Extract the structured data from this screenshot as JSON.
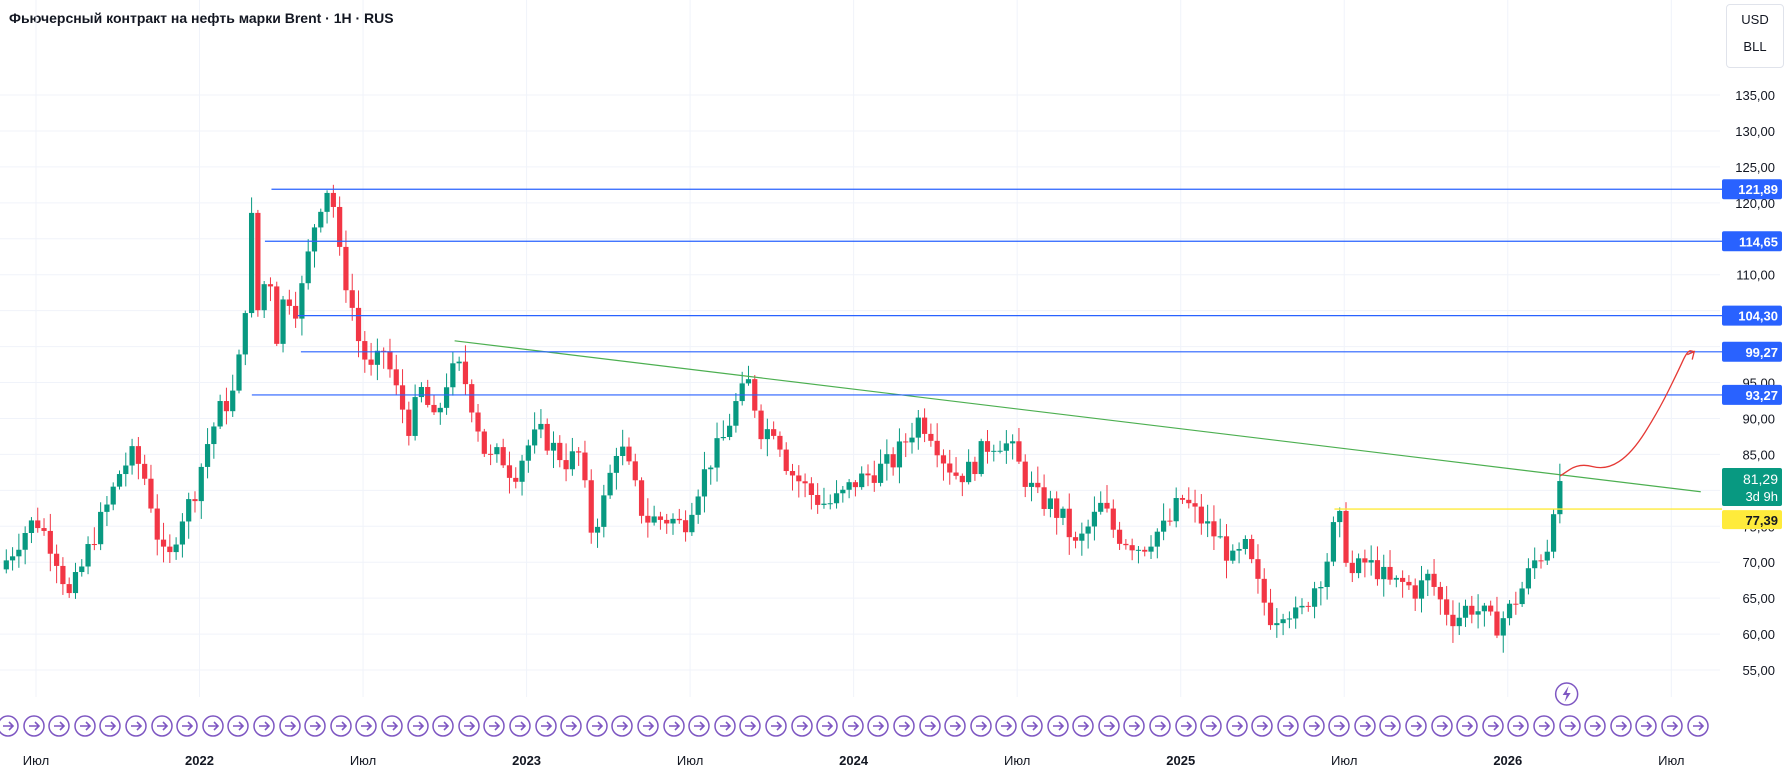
{
  "header": {
    "title": "Фьючерсный контракт на нефть марки Brent · 1H · RUS",
    "currency": "USD",
    "unit": "BLL"
  },
  "colors": {
    "up": "#089981",
    "down": "#f23645",
    "level_line": "#2962ff",
    "level_label_bg": "#2962ff",
    "trendline": "#4caf50",
    "current_label_bg": "#089981",
    "support_line": "#ffeb3b",
    "support_label_bg": "#ffeb3b",
    "projection": "#e53935",
    "event_icon": "#7e57c2"
  },
  "chart_data": {
    "type": "candlestick",
    "ylim": [
      53,
      141
    ],
    "y_ticks": [
      "55,00",
      "60,00",
      "65,00",
      "70,00",
      "75,00",
      "80,00",
      "85,00",
      "90,00",
      "95,00",
      "100,00",
      "105,00",
      "110,00",
      "115,00",
      "120,00",
      "125,00",
      "130,00",
      "135,00"
    ],
    "x_ticks": [
      {
        "label": "Июл",
        "t": 2021.5
      },
      {
        "label": "2022",
        "t": 2022.0
      },
      {
        "label": "Июл",
        "t": 2022.5
      },
      {
        "label": "2023",
        "t": 2023.0
      },
      {
        "label": "Июл",
        "t": 2023.5
      },
      {
        "label": "2024",
        "t": 2024.0
      },
      {
        "label": "Июл",
        "t": 2024.5
      },
      {
        "label": "2025",
        "t": 2025.0
      },
      {
        "label": "Июл",
        "t": 2025.5
      },
      {
        "label": "2026",
        "t": 2026.0
      },
      {
        "label": "Июл",
        "t": 2026.5
      }
    ],
    "xlim": [
      2021.39,
      2026.71
    ],
    "close_path": [
      [
        2021.39,
        69
      ],
      [
        2021.42,
        71
      ],
      [
        2021.46,
        74
      ],
      [
        2021.5,
        76
      ],
      [
        2021.54,
        73
      ],
      [
        2021.57,
        70
      ],
      [
        2021.6,
        65
      ],
      [
        2021.63,
        68
      ],
      [
        2021.67,
        73
      ],
      [
        2021.72,
        78
      ],
      [
        2021.76,
        83
      ],
      [
        2021.8,
        85
      ],
      [
        2021.84,
        81
      ],
      [
        2021.87,
        74
      ],
      [
        2021.9,
        69
      ],
      [
        2021.94,
        76
      ],
      [
        2021.98,
        79
      ],
      [
        2022.02,
        86
      ],
      [
        2022.06,
        91
      ],
      [
        2022.1,
        93
      ],
      [
        2022.13,
        100
      ],
      [
        2022.16,
        118
      ],
      [
        2022.18,
        104
      ],
      [
        2022.21,
        112
      ],
      [
        2022.24,
        100
      ],
      [
        2022.26,
        108
      ],
      [
        2022.3,
        105
      ],
      [
        2022.33,
        112
      ],
      [
        2022.36,
        119
      ],
      [
        2022.4,
        123
      ],
      [
        2022.43,
        112
      ],
      [
        2022.46,
        107
      ],
      [
        2022.49,
        100
      ],
      [
        2022.53,
        96
      ],
      [
        2022.56,
        100
      ],
      [
        2022.6,
        94
      ],
      [
        2022.64,
        89
      ],
      [
        2022.68,
        94
      ],
      [
        2022.72,
        89
      ],
      [
        2022.76,
        96
      ],
      [
        2022.8,
        97
      ],
      [
        2022.84,
        91
      ],
      [
        2022.88,
        84
      ],
      [
        2022.92,
        85
      ],
      [
        2022.96,
        82
      ],
      [
        2023.0,
        86
      ],
      [
        2023.04,
        88
      ],
      [
        2023.08,
        86
      ],
      [
        2023.12,
        84
      ],
      [
        2023.16,
        85
      ],
      [
        2023.2,
        74
      ],
      [
        2023.24,
        79
      ],
      [
        2023.28,
        87
      ],
      [
        2023.32,
        82
      ],
      [
        2023.36,
        76
      ],
      [
        2023.4,
        76
      ],
      [
        2023.44,
        76
      ],
      [
        2023.48,
        75
      ],
      [
        2023.52,
        80
      ],
      [
        2023.56,
        84
      ],
      [
        2023.6,
        87
      ],
      [
        2023.64,
        92
      ],
      [
        2023.68,
        95
      ],
      [
        2023.72,
        88
      ],
      [
        2023.76,
        89
      ],
      [
        2023.8,
        83
      ],
      [
        2023.84,
        81
      ],
      [
        2023.88,
        79
      ],
      [
        2023.92,
        78
      ],
      [
        2023.96,
        79
      ],
      [
        2024.0,
        81
      ],
      [
        2024.04,
        82
      ],
      [
        2024.08,
        83
      ],
      [
        2024.12,
        84
      ],
      [
        2024.16,
        87
      ],
      [
        2024.2,
        90
      ],
      [
        2024.24,
        88
      ],
      [
        2024.28,
        84
      ],
      [
        2024.32,
        82
      ],
      [
        2024.36,
        83
      ],
      [
        2024.4,
        86
      ],
      [
        2024.44,
        87
      ],
      [
        2024.48,
        86
      ],
      [
        2024.52,
        82
      ],
      [
        2024.56,
        79
      ],
      [
        2024.6,
        78
      ],
      [
        2024.64,
        76
      ],
      [
        2024.68,
        72
      ],
      [
        2024.72,
        75
      ],
      [
        2024.76,
        78
      ],
      [
        2024.8,
        74
      ],
      [
        2024.84,
        73
      ],
      [
        2024.88,
        72
      ],
      [
        2024.92,
        74
      ],
      [
        2024.96,
        75
      ],
      [
        2025.0,
        79
      ],
      [
        2025.04,
        77
      ],
      [
        2025.08,
        75
      ],
      [
        2025.12,
        73
      ],
      [
        2025.16,
        70
      ],
      [
        2025.2,
        72
      ],
      [
        2025.24,
        66
      ],
      [
        2025.28,
        62
      ],
      [
        2025.32,
        64
      ],
      [
        2025.36,
        62
      ],
      [
        2025.4,
        66
      ],
      [
        2025.44,
        69
      ],
      [
        2025.48,
        77
      ],
      [
        2025.52,
        68
      ],
      [
        2025.56,
        70
      ],
      [
        2025.6,
        69
      ],
      [
        2025.64,
        67
      ],
      [
        2025.68,
        67
      ],
      [
        2025.72,
        66
      ],
      [
        2025.76,
        68
      ],
      [
        2025.8,
        64
      ],
      [
        2025.84,
        62
      ],
      [
        2025.88,
        64
      ],
      [
        2025.92,
        63
      ],
      [
        2025.96,
        61
      ],
      [
        2026.0,
        63
      ],
      [
        2026.04,
        66
      ],
      [
        2026.08,
        70
      ],
      [
        2026.12,
        72
      ],
      [
        2026.15,
        81.29
      ]
    ],
    "levels": [
      121.89,
      114.65,
      104.3,
      99.27,
      93.27
    ],
    "level_labels": [
      "121,89",
      "114,65",
      "104,30",
      "99,27",
      "93,27"
    ],
    "level_start_t": [
      2022.22,
      2022.2,
      2022.3,
      2022.31,
      2022.16
    ],
    "trendline": {
      "from": [
        2022.78,
        100.8
      ],
      "to": [
        2026.59,
        79.8
      ]
    },
    "support": {
      "value": 77.39,
      "label": "77,39",
      "from_t": 2025.47
    },
    "current": {
      "value": 81.29,
      "label": "81,29",
      "countdown": "3d 9h"
    },
    "projection": [
      [
        2026.16,
        82.0
      ],
      [
        2026.22,
        83.8
      ],
      [
        2026.3,
        82.8
      ],
      [
        2026.38,
        85.2
      ],
      [
        2026.46,
        91
      ],
      [
        2026.52,
        96.5
      ],
      [
        2026.55,
        99.5
      ],
      [
        2026.57,
        99.3
      ]
    ]
  }
}
